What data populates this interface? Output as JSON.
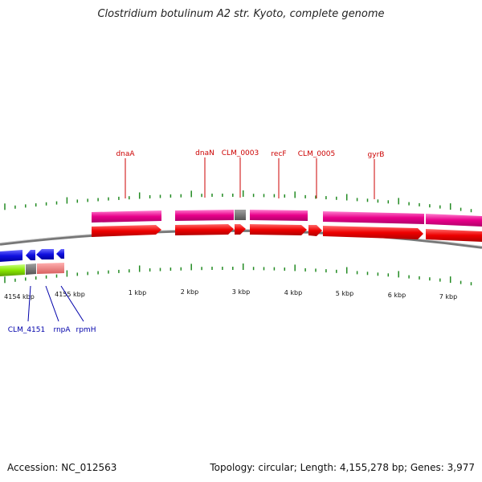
{
  "title": "Clostridium botulinum A2 str. Kyoto, complete genome",
  "footer": {
    "accession": "Accession: NC_012563",
    "summary": "Topology: circular; Length: 4,155,278 bp; Genes: 3,977"
  },
  "colors": {
    "forward_gene": "#e8008a",
    "forward_cds": "#ee0000",
    "reverse_cds": "#1010e0",
    "reverse_misc": "#88e600",
    "rna": "#6e6e6e",
    "pseudo": "#f08080",
    "backbone": "#777777",
    "ticks": "#228b22",
    "forward_label": "#cc0000",
    "reverse_label": "#0000aa"
  },
  "ticks": {
    "labels": [
      {
        "text": "4154 kbp"
      },
      {
        "text": "4155 kbp"
      },
      {
        "text": "1 kbp"
      },
      {
        "text": "2 kbp"
      },
      {
        "text": "3 kbp"
      },
      {
        "text": "4 kbp"
      },
      {
        "text": "5 kbp"
      },
      {
        "text": "6 kbp"
      },
      {
        "text": "7 kbp"
      }
    ]
  },
  "forward_labels": [
    {
      "text": "dnaA"
    },
    {
      "text": "dnaN"
    },
    {
      "text": "CLM_0003"
    },
    {
      "text": "recF"
    },
    {
      "text": "CLM_0005"
    },
    {
      "text": "gyrB"
    }
  ],
  "reverse_labels": [
    {
      "text": "CLM_4151"
    },
    {
      "text": "rnpA"
    },
    {
      "text": "rpmH"
    }
  ]
}
